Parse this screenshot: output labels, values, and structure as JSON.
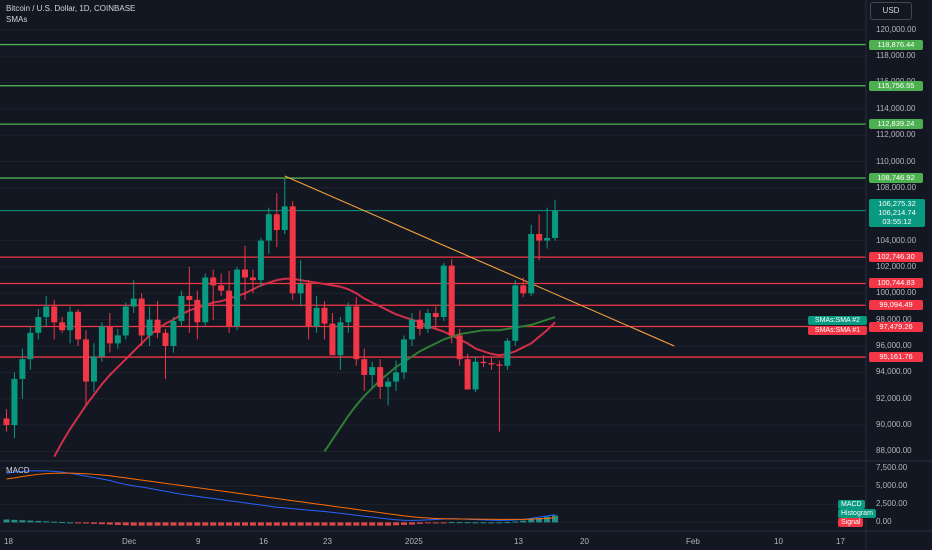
{
  "header": {
    "title": "Bitcoin / U.S. Dollar, 1D, COINBASE",
    "indicator": "SMAs",
    "currency": "USD"
  },
  "price_axis": {
    "labels": [
      "120,000.00",
      "118,000.00",
      "116,000.00",
      "114,000.00",
      "112,000.00",
      "110,000.00",
      "108,000.00",
      "104,000.00",
      "102,000.00",
      "100,000.00",
      "98,000.00",
      "96,000.00",
      "94,000.00",
      "92,000.00",
      "90,000.00",
      "88,000.00"
    ],
    "values": [
      120000,
      118000,
      116000,
      114000,
      112000,
      110000,
      108000,
      104000,
      102000,
      100000,
      98000,
      96000,
      94000,
      92000,
      90000,
      88000
    ]
  },
  "levels": [
    {
      "label": "118,876.44",
      "value": 118876.44,
      "color": "#4caf50"
    },
    {
      "label": "115,756.55",
      "value": 115756.55,
      "color": "#4caf50"
    },
    {
      "label": "112,839.24",
      "value": 112839.24,
      "color": "#4caf50"
    },
    {
      "label": "108,746.92",
      "value": 108746.92,
      "color": "#4caf50"
    },
    {
      "label": "102,746.30",
      "value": 102746.3,
      "color": "#f23645"
    },
    {
      "label": "100,744.83",
      "value": 100744.83,
      "color": "#f23645"
    },
    {
      "label": "99,094.49",
      "value": 99094.49,
      "color": "#f23645"
    },
    {
      "label": "97,479.26",
      "value": 97479.26,
      "color": "#f23645"
    },
    {
      "label": "95,161.76",
      "value": 95161.76,
      "color": "#f23645"
    }
  ],
  "last_price": {
    "line_value": 106275.32,
    "line1": "106,275.32",
    "line2": "106,214.74",
    "line3": "03:55:12"
  },
  "sma_labels": {
    "sma2": "SMAs:SMA #2",
    "sma1": "SMAs:SMA #1"
  },
  "macd": {
    "title": "MACD",
    "axis": [
      "7,500.00",
      "5,000.00",
      "2,500.00",
      "0.00"
    ],
    "axis_values": [
      7500,
      5000,
      2500,
      0
    ],
    "tags": {
      "macd": "MACD",
      "histogram": "Histogram",
      "signal": "Signal"
    },
    "colors": {
      "macd": "#2962ff",
      "signal": "#ff6d00",
      "hist_pos": "#26a69a",
      "hist_neg": "#ff5252"
    }
  },
  "time_axis": [
    "18",
    "Dec",
    "9",
    "16",
    "23",
    "2025",
    "13",
    "20",
    "Feb",
    "10",
    "17"
  ],
  "colors": {
    "up": "#089981",
    "down": "#f23645",
    "sma_red": "#d12f47",
    "sma_green": "#2e7d32",
    "trendline": "#f7a33b",
    "background": "#131722"
  },
  "chart_data": {
    "type": "candlestick",
    "title": "Bitcoin / U.S. Dollar, 1D, COINBASE",
    "ylim": [
      87500,
      121500
    ],
    "candles": [
      [
        90500,
        91200,
        89500,
        90000
      ],
      [
        90000,
        94000,
        89000,
        93500
      ],
      [
        93500,
        95800,
        92000,
        95000
      ],
      [
        95000,
        97500,
        94200,
        97000
      ],
      [
        97000,
        98800,
        96500,
        98200
      ],
      [
        98200,
        99800,
        97500,
        99000
      ],
      [
        99000,
        99500,
        96500,
        97800
      ],
      [
        97800,
        98200,
        97000,
        97200
      ],
      [
        97200,
        99000,
        96200,
        98600
      ],
      [
        98600,
        98800,
        96000,
        96500
      ],
      [
        96500,
        97200,
        91500,
        93300
      ],
      [
        93300,
        96200,
        92500,
        95200
      ],
      [
        95200,
        97800,
        94800,
        97500
      ],
      [
        97500,
        98500,
        95500,
        96200
      ],
      [
        96200,
        97300,
        95800,
        96800
      ],
      [
        96800,
        99300,
        96500,
        99000
      ],
      [
        99000,
        101000,
        98500,
        99600
      ],
      [
        99600,
        100000,
        96000,
        96800
      ],
      [
        96800,
        99000,
        96000,
        98000
      ],
      [
        98000,
        99400,
        96600,
        97000
      ],
      [
        97000,
        97300,
        93500,
        96000
      ],
      [
        96000,
        98200,
        95500,
        97900
      ],
      [
        97900,
        100200,
        97500,
        99800
      ],
      [
        99800,
        102000,
        97000,
        99500
      ],
      [
        99500,
        100200,
        96500,
        97800
      ],
      [
        97800,
        101500,
        97500,
        101200
      ],
      [
        101200,
        101800,
        98000,
        100600
      ],
      [
        100600,
        101500,
        99800,
        100200
      ],
      [
        100200,
        101700,
        97000,
        97500
      ],
      [
        97500,
        102000,
        97200,
        101800
      ],
      [
        101800,
        103600,
        99500,
        101200
      ],
      [
        101200,
        101800,
        100000,
        101000
      ],
      [
        101000,
        104200,
        100500,
        104000
      ],
      [
        104000,
        106500,
        103000,
        106000
      ],
      [
        106000,
        107600,
        103500,
        104800
      ],
      [
        104800,
        108700,
        104500,
        106600
      ],
      [
        106600,
        107000,
        99500,
        100000
      ],
      [
        100000,
        102500,
        99000,
        100700
      ],
      [
        100700,
        101000,
        96500,
        97500
      ],
      [
        97500,
        99800,
        97000,
        98900
      ],
      [
        98900,
        99400,
        96500,
        97700
      ],
      [
        97700,
        98500,
        95300,
        95300
      ],
      [
        95300,
        98200,
        94200,
        97800
      ],
      [
        97800,
        99300,
        97000,
        99000
      ],
      [
        99000,
        99700,
        94500,
        95000
      ],
      [
        95000,
        95800,
        92600,
        93800
      ],
      [
        93800,
        94800,
        92800,
        94400
      ],
      [
        94400,
        95000,
        92000,
        92900
      ],
      [
        92900,
        93600,
        91500,
        93300
      ],
      [
        93300,
        94900,
        92600,
        94000
      ],
      [
        94000,
        96800,
        93500,
        96500
      ],
      [
        96500,
        98500,
        96000,
        98000
      ],
      [
        98000,
        98700,
        96800,
        97300
      ],
      [
        97300,
        98800,
        97000,
        98500
      ],
      [
        98500,
        99000,
        97300,
        98200
      ],
      [
        98200,
        102300,
        97900,
        102100
      ],
      [
        102100,
        102600,
        96200,
        96800
      ],
      [
        96800,
        97300,
        94500,
        95000
      ],
      [
        95000,
        95400,
        92700,
        92700
      ],
      [
        92700,
        95200,
        92500,
        94800
      ],
      [
        94800,
        95300,
        94400,
        94700
      ],
      [
        94700,
        95100,
        94200,
        94600
      ],
      [
        94600,
        94900,
        89500,
        94500
      ],
      [
        94500,
        96600,
        94200,
        96400
      ],
      [
        96400,
        101000,
        96000,
        100600
      ],
      [
        100600,
        101200,
        99700,
        100000
      ],
      [
        100000,
        105200,
        99800,
        104500
      ],
      [
        104500,
        106000,
        102500,
        104000
      ],
      [
        104000,
        106500,
        103400,
        104200
      ],
      [
        104200,
        107100,
        104000,
        106250
      ]
    ],
    "sma1": [
      81000,
      82000,
      83000,
      84200,
      85400,
      86500,
      87600,
      88700,
      89700,
      90600,
      91500,
      92300,
      93100,
      93800,
      94400,
      95000,
      95600,
      96200,
      96800,
      97300,
      97700,
      98000,
      98400,
      98700,
      98900,
      99100,
      99300,
      99400,
      99600,
      99800,
      100000,
      100300,
      100600,
      100800,
      101000,
      101100,
      101100,
      101000,
      100900,
      100800,
      100700,
      100600,
      100500,
      100300,
      100000,
      99600,
      99300,
      99000,
      98700,
      98400,
      98200,
      98000,
      97800,
      97500,
      97300,
      97100,
      96800,
      96500,
      96200,
      95800,
      95600,
      95400,
      95300,
      95400,
      95600,
      95900,
      96200,
      96700,
      97200,
      97800
    ],
    "sma2": [
      null,
      null,
      null,
      null,
      null,
      null,
      null,
      null,
      null,
      null,
      null,
      null,
      null,
      null,
      null,
      null,
      null,
      null,
      null,
      null,
      null,
      null,
      null,
      null,
      null,
      null,
      null,
      null,
      null,
      null,
      null,
      null,
      null,
      null,
      null,
      null,
      null,
      null,
      null,
      null,
      88000,
      88900,
      89800,
      90700,
      91500,
      92200,
      92800,
      93400,
      93900,
      94400,
      94800,
      95200,
      95600,
      95900,
      96200,
      96500,
      96700,
      96900,
      97000,
      97100,
      97200,
      97200,
      97200,
      97300,
      97400,
      97500,
      97600,
      97800,
      98000,
      98200
    ],
    "trendline": {
      "from": {
        "index": 35,
        "price": 108900
      },
      "to": {
        "index": 84,
        "price": 96000
      }
    },
    "macd_ylim": [
      -500,
      7800
    ],
    "macd_line": [
      6800,
      6950,
      7050,
      7120,
      7150,
      7120,
      7050,
      6950,
      6800,
      6600,
      6400,
      6200,
      6000,
      5800,
      5500,
      5250,
      5050,
      4900,
      4700,
      4500,
      4300,
      4100,
      3900,
      3750,
      3600,
      3450,
      3300,
      3150,
      3000,
      2850,
      2700,
      2550,
      2400,
      2250,
      2100,
      2000,
      1900,
      1800,
      1700,
      1600,
      1500,
      1380,
      1260,
      1120,
      980,
      850,
      720,
      600,
      470,
      360,
      300,
      280,
      300,
      340,
      400,
      470,
      520,
      480,
      430,
      380,
      340,
      300,
      280,
      290,
      330,
      420,
      560,
      720,
      880,
      1080
    ],
    "signal_line": [
      6000,
      6150,
      6350,
      6500,
      6650,
      6750,
      6800,
      6820,
      6810,
      6780,
      6720,
      6650,
      6550,
      6450,
      6300,
      6150,
      6000,
      5850,
      5700,
      5550,
      5400,
      5250,
      5100,
      4950,
      4800,
      4650,
      4500,
      4350,
      4200,
      4050,
      3900,
      3750,
      3600,
      3450,
      3300,
      3150,
      3000,
      2850,
      2700,
      2550,
      2400,
      2250,
      2100,
      1950,
      1800,
      1650,
      1500,
      1350,
      1200,
      1050,
      900,
      780,
      680,
      600,
      540,
      500,
      480,
      470,
      460,
      450,
      440,
      430,
      420,
      410,
      410,
      420,
      450,
      500,
      560,
      640
    ],
    "histogram": [
      400,
      350,
      300,
      250,
      200,
      150,
      100,
      50,
      0,
      -100,
      -150,
      -200,
      -250,
      -300,
      -350,
      -400,
      -450,
      -450,
      -450,
      -450,
      -450,
      -450,
      -450,
      -450,
      -450,
      -450,
      -450,
      -450,
      -450,
      -450,
      -450,
      -450,
      -450,
      -450,
      -450,
      -450,
      -450,
      -450,
      -450,
      -450,
      -450,
      -450,
      -450,
      -450,
      -450,
      -450,
      -450,
      -450,
      -450,
      -400,
      -350,
      -300,
      -200,
      -120,
      -80,
      -50,
      40,
      30,
      20,
      10,
      5,
      0,
      10,
      40,
      120,
      250,
      420,
      600,
      780,
      960
    ]
  }
}
